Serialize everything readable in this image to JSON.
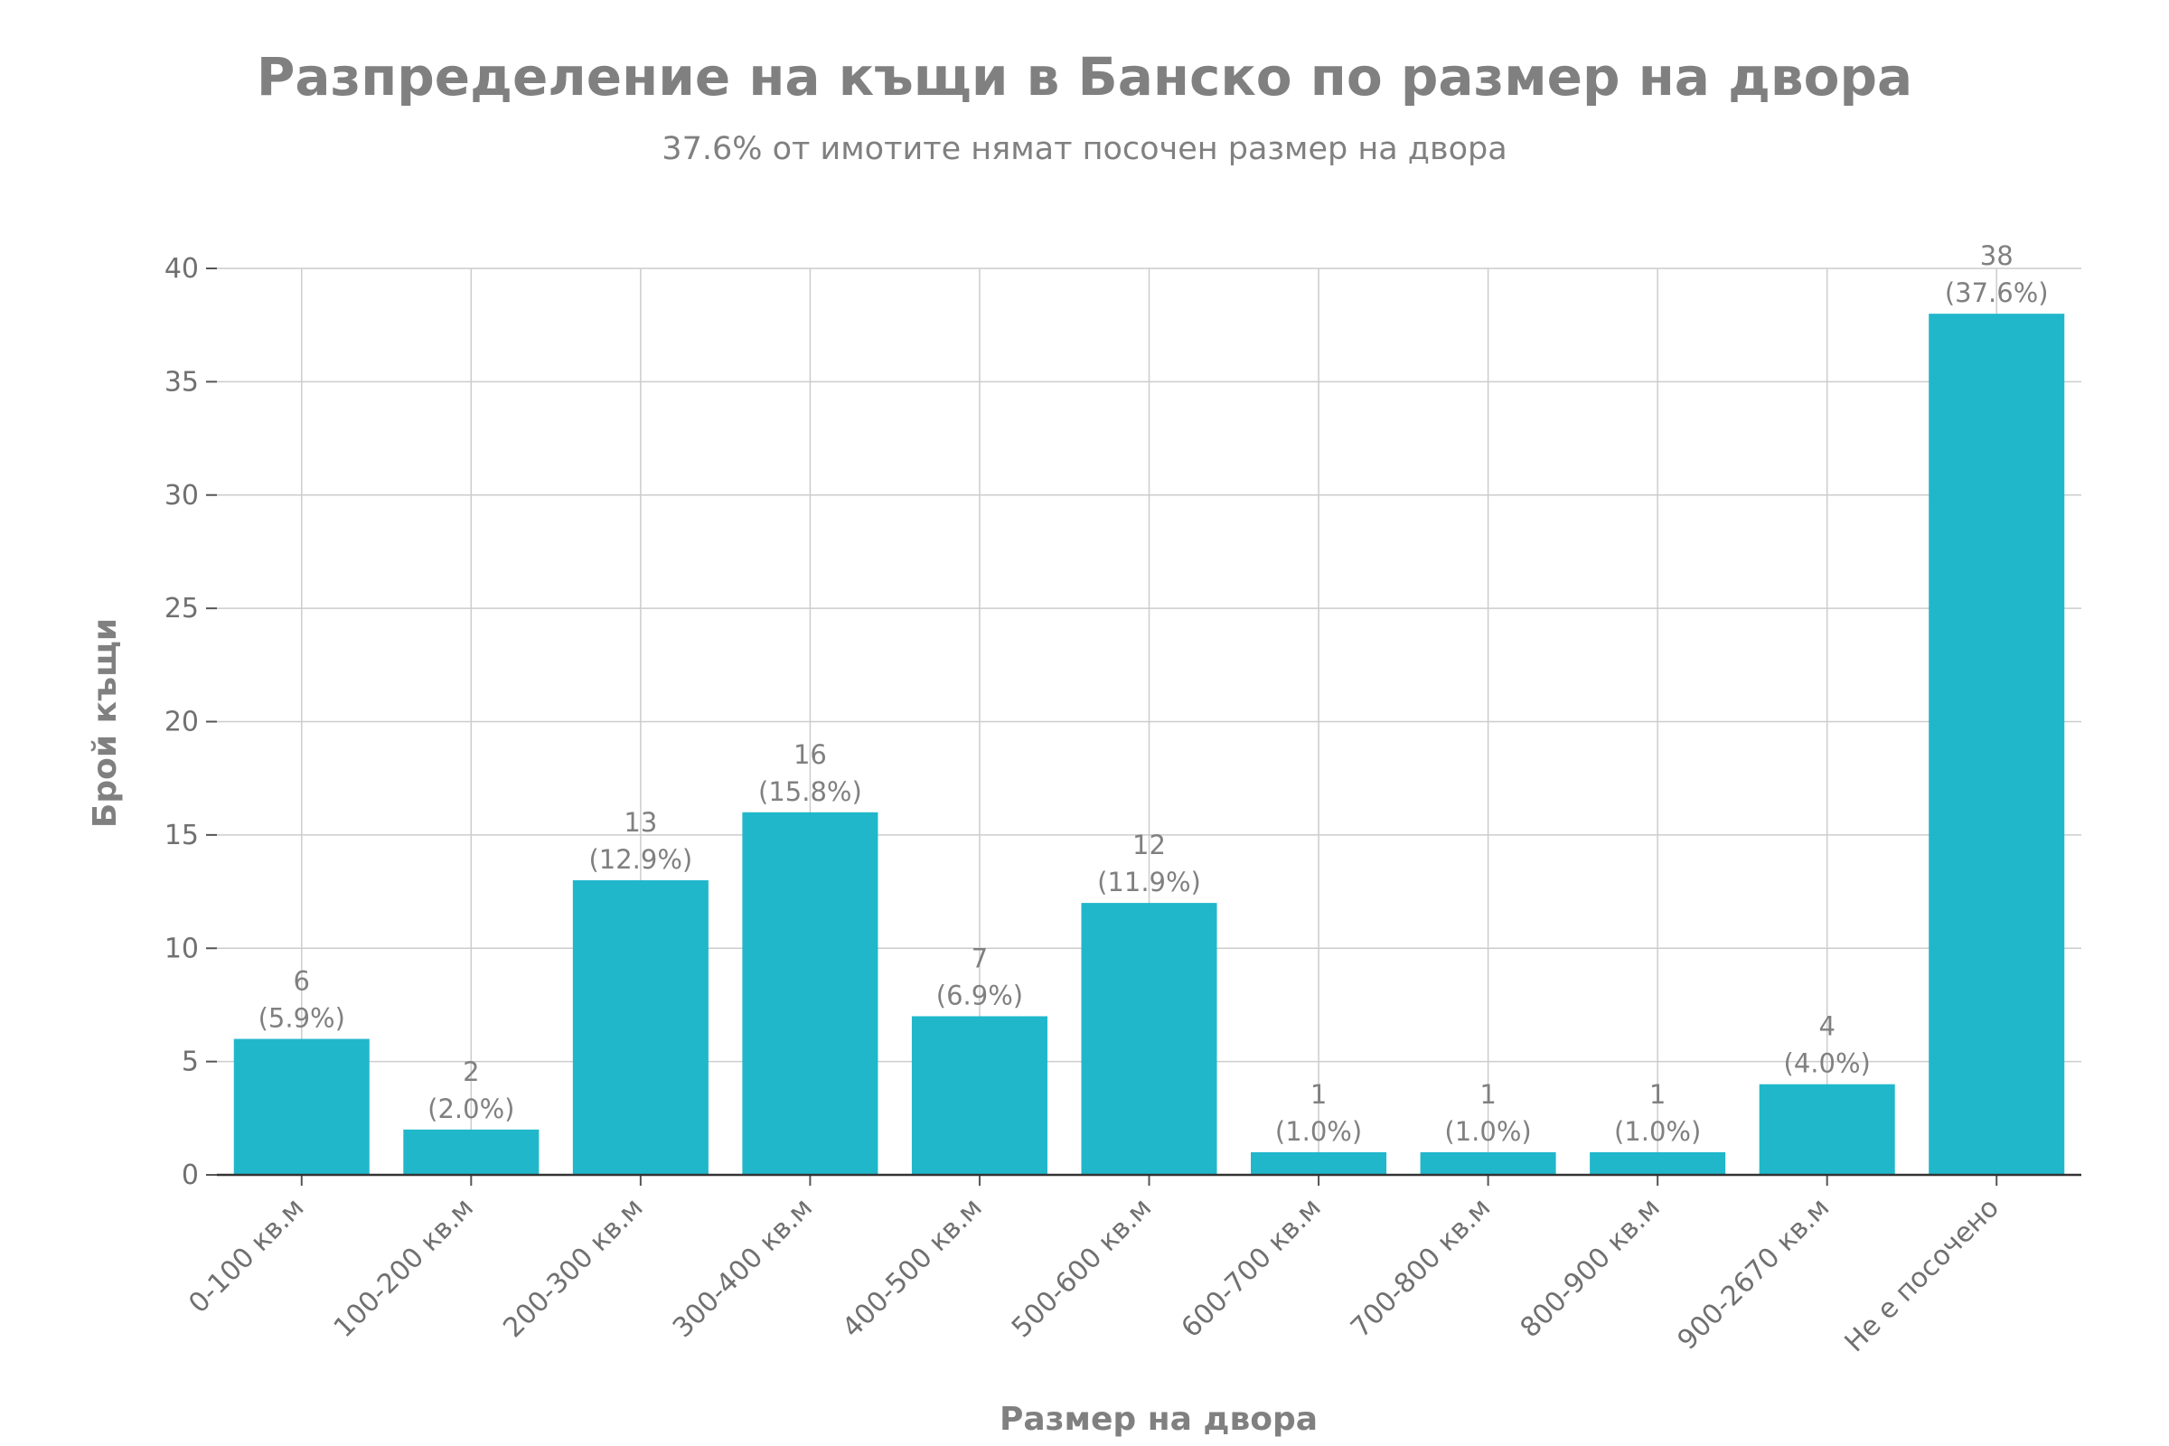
{
  "chart_data": {
    "type": "bar",
    "title": "Разпределение на къщи в Банско по размер на двора",
    "subtitle": "37.6% от имотите нямат посочен размер на двора",
    "xlabel": "Размер на двора",
    "ylabel": "Брой къщи",
    "categories": [
      "0-100 кв.м",
      "100-200 кв.м",
      "200-300 кв.м",
      "300-400 кв.м",
      "400-500 кв.м",
      "500-600 кв.м",
      "600-700 кв.м",
      "700-800 кв.м",
      "800-900 кв.м",
      "900-2670 кв.м",
      "Не е посочено"
    ],
    "values": [
      6,
      2,
      13,
      16,
      7,
      12,
      1,
      1,
      1,
      4,
      38
    ],
    "value_labels": [
      "6",
      "2",
      "13",
      "16",
      "7",
      "12",
      "1",
      "1",
      "1",
      "4",
      "38"
    ],
    "percent_labels": [
      "(5.9%)",
      "(2.0%)",
      "(12.9%)",
      "(15.8%)",
      "(6.9%)",
      "(11.9%)",
      "(1.0%)",
      "(1.0%)",
      "(1.0%)",
      "(4.0%)",
      "(37.6%)"
    ],
    "ylim": [
      0,
      40
    ],
    "yticks": [
      0,
      5,
      10,
      15,
      20,
      25,
      30,
      35,
      40
    ],
    "bar_color": "#20b7cb",
    "grid": true,
    "legend": "none"
  }
}
